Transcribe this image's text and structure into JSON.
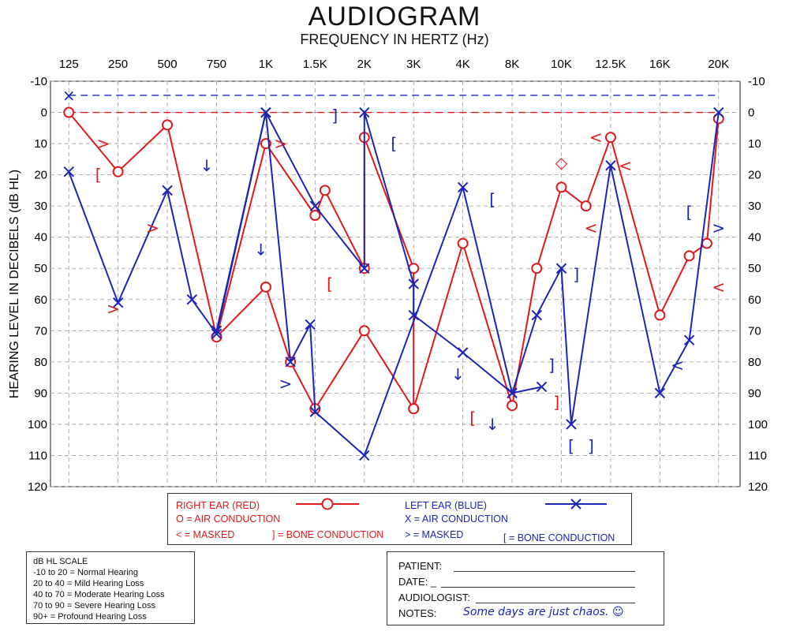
{
  "chart_data": {
    "type": "line",
    "title": "AUDIOGRAM",
    "subtitle": "FREQUENCY IN HERTZ (Hz)",
    "ylabel": "HEARING LEVEL IN DECIBELS (dB HL)",
    "categories": [
      "125",
      "250",
      "500",
      "750",
      "1K",
      "1.5K",
      "2K",
      "3K",
      "4K",
      "8K",
      "10K",
      "12.5K",
      "16K",
      "20K"
    ],
    "yticks": [
      -10,
      0,
      10,
      20,
      30,
      40,
      50,
      60,
      70,
      80,
      90,
      100,
      110,
      120
    ],
    "ylim": [
      -10,
      120
    ],
    "y_inverted": true,
    "grid": true,
    "reference_lines": [
      {
        "color": "#1c25b5",
        "y": -5.5
      },
      {
        "color": "#e0191c",
        "y": 0
      }
    ],
    "series": [
      {
        "name": "RIGHT EAR (RED)",
        "color": "#e0191c",
        "marker": "circle",
        "points": [
          [
            0,
            0
          ],
          [
            1,
            19
          ],
          [
            2,
            4
          ],
          [
            3,
            72
          ],
          [
            4,
            10
          ],
          [
            5,
            33
          ],
          [
            5.2,
            25
          ],
          [
            6,
            50
          ],
          [
            6,
            8
          ],
          [
            7,
            50
          ],
          [
            7,
            95
          ],
          [
            8,
            42
          ],
          [
            9,
            94
          ],
          [
            9.5,
            50
          ],
          [
            10,
            24
          ],
          [
            10.5,
            30
          ],
          [
            11,
            8
          ],
          [
            12,
            65
          ],
          [
            12.5,
            46
          ],
          [
            12.8,
            42
          ],
          [
            13,
            2
          ]
        ]
      },
      {
        "name": "RIGHT EAR (RED) 2",
        "color": "#e0191c",
        "marker": "circle",
        "points": [
          [
            3,
            72
          ],
          [
            4,
            56
          ],
          [
            4.5,
            80
          ],
          [
            5,
            95
          ],
          [
            6,
            70
          ],
          [
            7,
            95
          ]
        ]
      },
      {
        "name": "LEFT EAR (BLUE)",
        "color": "#1c25b5",
        "marker": "x",
        "points": [
          [
            0,
            19
          ],
          [
            1,
            61
          ],
          [
            2,
            25
          ],
          [
            2.5,
            60
          ],
          [
            3,
            71
          ],
          [
            4,
            0
          ],
          [
            5,
            30
          ],
          [
            6,
            50
          ],
          [
            6,
            0
          ],
          [
            7,
            55
          ],
          [
            7,
            65
          ],
          [
            8,
            77
          ],
          [
            9,
            90
          ],
          [
            9.5,
            65
          ],
          [
            10,
            50
          ],
          [
            10.2,
            100
          ],
          [
            11,
            17
          ],
          [
            12,
            90
          ],
          [
            12.5,
            73
          ],
          [
            13,
            0
          ]
        ]
      },
      {
        "name": "LEFT EAR (BLUE) 2",
        "color": "#1c25b5",
        "marker": "x",
        "points": [
          [
            3,
            70
          ],
          [
            4,
            0
          ],
          [
            4.5,
            80
          ],
          [
            4.9,
            68
          ],
          [
            5,
            96
          ],
          [
            6,
            110
          ],
          [
            8,
            24
          ],
          [
            9,
            90
          ],
          [
            9.6,
            88
          ]
        ]
      }
    ],
    "scattered_symbols": [
      {
        "color": "#e0191c",
        "text": ">",
        "x": 0.7,
        "y": 10
      },
      {
        "color": "#e0191c",
        "text": "[",
        "x": 0.6,
        "y": 20
      },
      {
        "color": "#e0191c",
        "text": ">",
        "x": 1.7,
        "y": 37
      },
      {
        "color": "#e0191c",
        "text": ">",
        "x": 0.9,
        "y": 63
      },
      {
        "color": "#e0191c",
        "text": ">",
        "x": 4.3,
        "y": 10
      },
      {
        "color": "#e0191c",
        "text": "[",
        "x": 5.3,
        "y": 55
      },
      {
        "color": "#e0191c",
        "text": "[",
        "x": 8.2,
        "y": 98
      },
      {
        "color": "#e0191c",
        "text": "]",
        "x": 9.9,
        "y": 93
      },
      {
        "color": "#e0191c",
        "text": "<",
        "x": 10.7,
        "y": 8
      },
      {
        "color": "#e0191c",
        "text": "<",
        "x": 11.3,
        "y": 17
      },
      {
        "color": "#e0191c",
        "text": "<",
        "x": 10.6,
        "y": 37
      },
      {
        "color": "#e0191c",
        "text": "<",
        "x": 13.0,
        "y": 56
      },
      {
        "color": "#e0191c",
        "text": "◇",
        "x": 10.0,
        "y": 16
      },
      {
        "color": "#1c25b5",
        "text": "×",
        "x": 0,
        "y": -5.5
      },
      {
        "color": "#1c25b5",
        "text": "↓",
        "x": 2.8,
        "y": 17
      },
      {
        "color": "#1c25b5",
        "text": "↓",
        "x": 3.9,
        "y": 44
      },
      {
        "color": "#1c25b5",
        "text": ">",
        "x": 4.4,
        "y": 87
      },
      {
        "color": "#1c25b5",
        "text": "]",
        "x": 5.4,
        "y": 1
      },
      {
        "color": "#1c25b5",
        "text": "[",
        "x": 6.6,
        "y": 10
      },
      {
        "color": "#1c25b5",
        "text": "[",
        "x": 8.6,
        "y": 28
      },
      {
        "color": "#1c25b5",
        "text": "↓",
        "x": 7.9,
        "y": 84
      },
      {
        "color": "#1c25b5",
        "text": "↓",
        "x": 8.6,
        "y": 100
      },
      {
        "color": "#1c25b5",
        "text": "]",
        "x": 9.8,
        "y": 81
      },
      {
        "color": "#1c25b5",
        "text": "]",
        "x": 10.3,
        "y": 52
      },
      {
        "color": "#1c25b5",
        "text": "[",
        "x": 10.2,
        "y": 107
      },
      {
        "color": "#1c25b5",
        "text": "]",
        "x": 10.6,
        "y": 107
      },
      {
        "color": "#1c25b5",
        "text": "<",
        "x": 12.3,
        "y": 81
      },
      {
        "color": "#1c25b5",
        "text": "[",
        "x": 12.5,
        "y": 32
      },
      {
        "color": "#1c25b5",
        "text": ">",
        "x": 13,
        "y": 37
      }
    ]
  },
  "legend": {
    "right_ear": "RIGHT EAR (RED)",
    "right_air": "O = AIR CONDUCTION",
    "right_masked": "< = MASKED",
    "right_bone": "] = BONE CONDUCTION",
    "left_ear": "LEFT EAR (BLUE)",
    "left_air": "X = AIR CONDUCTION",
    "left_masked": "> = MASKED",
    "left_bone": "[ = BONE CONDUCTION"
  },
  "scale": {
    "title": "dB HL SCALE",
    "rows": [
      "-10 to 20  =  Normal Hearing",
      "20 to 40  =  Mild Hearing Loss",
      "40 to 70  =  Moderate Hearing Loss",
      "70 to 90  =  Severe Hearing Loss",
      "90+      =  Profound Hearing Loss"
    ]
  },
  "patient": {
    "patient_label": "PATIENT:",
    "date_label": "DATE: _",
    "audiologist_label": "AUDIOLOGIST:",
    "notes_label": "NOTES:",
    "notes_text": "Some days are just chaos.  ☺"
  },
  "colors": {
    "red": "#e0191c",
    "blue": "#1c25b5",
    "grid": "#9a9a9a"
  }
}
